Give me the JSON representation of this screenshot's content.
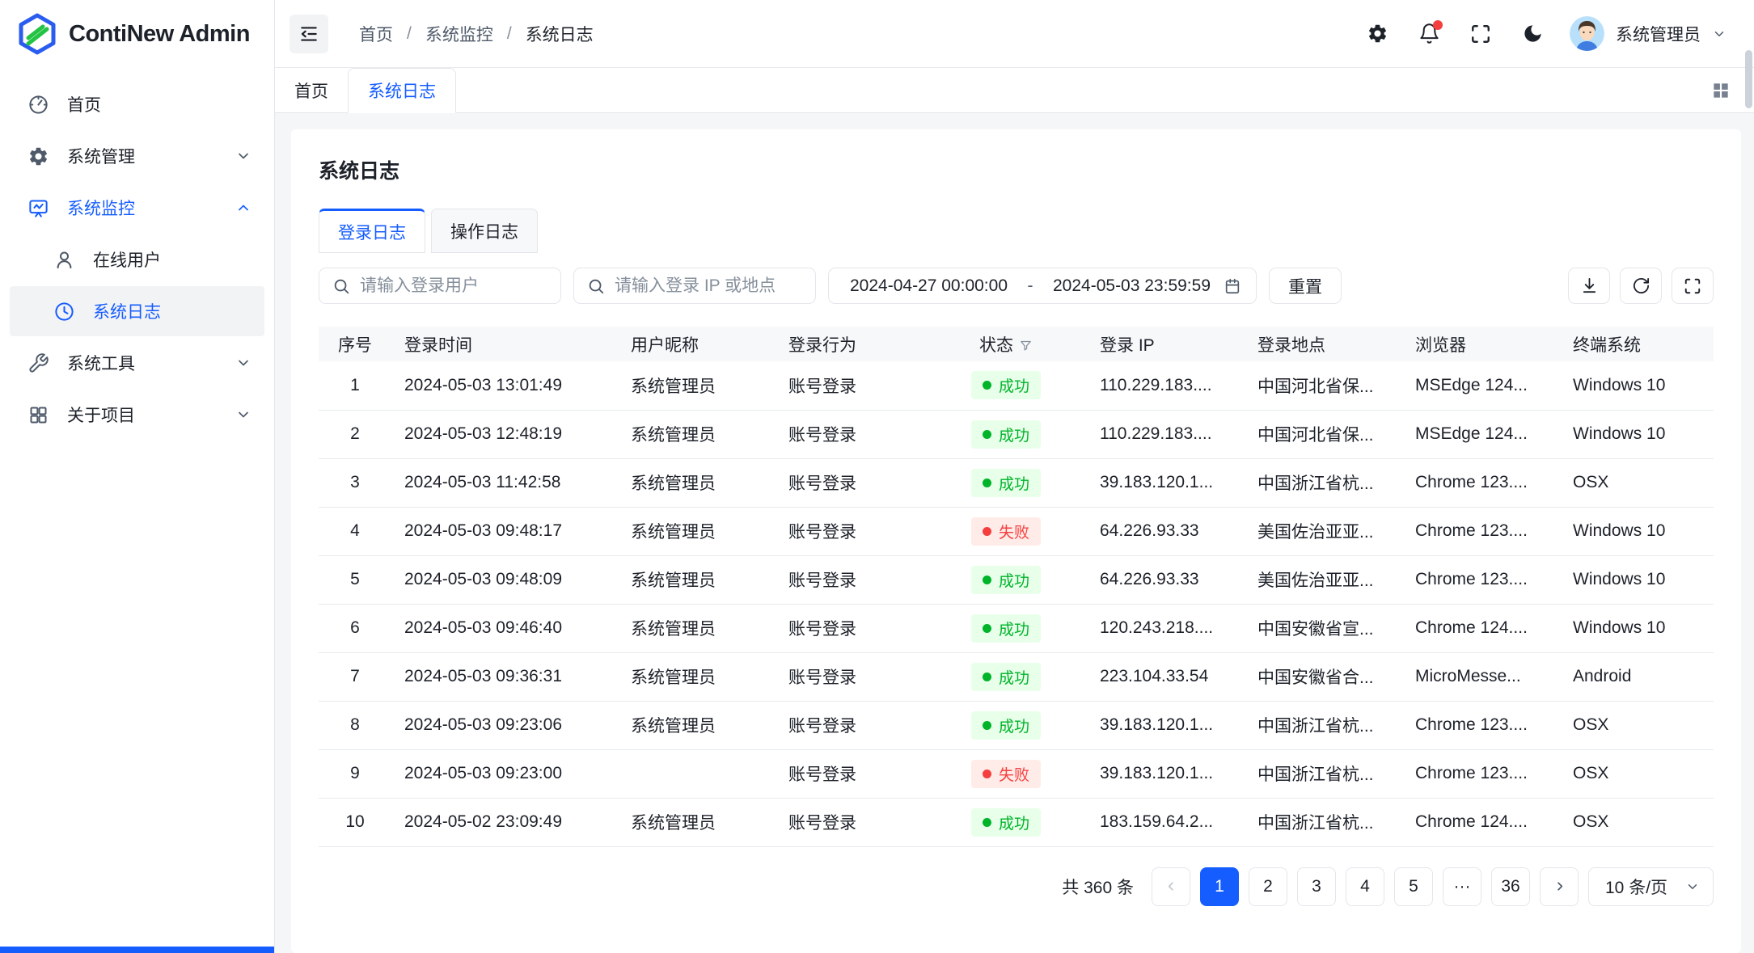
{
  "app": {
    "title": "ContiNew Admin"
  },
  "colors": {
    "primary": "#165dff",
    "success": "#00b42a",
    "danger": "#f53f3f"
  },
  "sidebar": {
    "items": [
      {
        "label": "首页",
        "icon": "dashboard-icon"
      },
      {
        "label": "系统管理",
        "icon": "gear-icon",
        "chevron": "down"
      },
      {
        "label": "系统监控",
        "icon": "monitor-icon",
        "chevron": "up",
        "active": true
      },
      {
        "label": "在线用户",
        "icon": "online-user-icon",
        "child": true
      },
      {
        "label": "系统日志",
        "icon": "clock-icon",
        "child": true,
        "selected": true
      },
      {
        "label": "系统工具",
        "icon": "wrench-icon",
        "chevron": "down"
      },
      {
        "label": "关于项目",
        "icon": "grid-icon",
        "chevron": "down"
      }
    ]
  },
  "header": {
    "breadcrumb": {
      "home": "首页",
      "sep1": "/",
      "monitor": "系统监控",
      "sep2": "/",
      "current": "系统日志"
    },
    "icons": [
      "settings-icon",
      "bell-icon",
      "fullscreen-icon",
      "moon-icon"
    ],
    "user_name": "系统管理员"
  },
  "tabbar": {
    "home_tab": "首页",
    "active_tab": "系统日志",
    "right_icon": "grid-filled-icon"
  },
  "page": {
    "title": "系统日志",
    "tabs": {
      "login": "登录日志",
      "operation": "操作日志"
    },
    "filters": {
      "user_placeholder": "请输入登录用户",
      "ip_placeholder": "请输入登录 IP 或地点",
      "date_start": "2024-04-27 00:00:00",
      "date_separator": "-",
      "date_end": "2024-05-03 23:59:59",
      "reset_label": "重置",
      "tool_icons": [
        "download-icon",
        "refresh-icon",
        "expand-icon"
      ]
    },
    "table": {
      "columns": [
        "序号",
        "登录时间",
        "用户昵称",
        "登录行为",
        "状态",
        "登录 IP",
        "登录地点",
        "浏览器",
        "终端系统"
      ],
      "rows": [
        {
          "no": "1",
          "time": "2024-05-03 13:01:49",
          "nick": "系统管理员",
          "action": "账号登录",
          "status": "成功",
          "ok": true,
          "ip": "110.229.183....",
          "loc": "中国河北省保...",
          "browser": "MSEdge 124...",
          "os": "Windows 10"
        },
        {
          "no": "2",
          "time": "2024-05-03 12:48:19",
          "nick": "系统管理员",
          "action": "账号登录",
          "status": "成功",
          "ok": true,
          "ip": "110.229.183....",
          "loc": "中国河北省保...",
          "browser": "MSEdge 124...",
          "os": "Windows 10"
        },
        {
          "no": "3",
          "time": "2024-05-03 11:42:58",
          "nick": "系统管理员",
          "action": "账号登录",
          "status": "成功",
          "ok": true,
          "ip": "39.183.120.1...",
          "loc": "中国浙江省杭...",
          "browser": "Chrome 123....",
          "os": "OSX"
        },
        {
          "no": "4",
          "time": "2024-05-03 09:48:17",
          "nick": "系统管理员",
          "action": "账号登录",
          "status": "失败",
          "ok": false,
          "ip": "64.226.93.33",
          "loc": "美国佐治亚亚...",
          "browser": "Chrome 123....",
          "os": "Windows 10"
        },
        {
          "no": "5",
          "time": "2024-05-03 09:48:09",
          "nick": "系统管理员",
          "action": "账号登录",
          "status": "成功",
          "ok": true,
          "ip": "64.226.93.33",
          "loc": "美国佐治亚亚...",
          "browser": "Chrome 123....",
          "os": "Windows 10"
        },
        {
          "no": "6",
          "time": "2024-05-03 09:46:40",
          "nick": "系统管理员",
          "action": "账号登录",
          "status": "成功",
          "ok": true,
          "ip": "120.243.218....",
          "loc": "中国安徽省宣...",
          "browser": "Chrome 124....",
          "os": "Windows 10"
        },
        {
          "no": "7",
          "time": "2024-05-03 09:36:31",
          "nick": "系统管理员",
          "action": "账号登录",
          "status": "成功",
          "ok": true,
          "ip": "223.104.33.54",
          "loc": "中国安徽省合...",
          "browser": "MicroMesse...",
          "os": "Android"
        },
        {
          "no": "8",
          "time": "2024-05-03 09:23:06",
          "nick": "系统管理员",
          "action": "账号登录",
          "status": "成功",
          "ok": true,
          "ip": "39.183.120.1...",
          "loc": "中国浙江省杭...",
          "browser": "Chrome 123....",
          "os": "OSX"
        },
        {
          "no": "9",
          "time": "2024-05-03 09:23:00",
          "nick": "",
          "action": "账号登录",
          "status": "失败",
          "ok": false,
          "ip": "39.183.120.1...",
          "loc": "中国浙江省杭...",
          "browser": "Chrome 123....",
          "os": "OSX"
        },
        {
          "no": "10",
          "time": "2024-05-02 23:09:49",
          "nick": "系统管理员",
          "action": "账号登录",
          "status": "成功",
          "ok": true,
          "ip": "183.159.64.2...",
          "loc": "中国浙江省杭...",
          "browser": "Chrome 124....",
          "os": "OSX"
        }
      ]
    },
    "pagination": {
      "total": "共 360 条",
      "pages": [
        "1",
        "2",
        "3",
        "4",
        "5",
        "···",
        "36"
      ],
      "active_page": "1",
      "page_size": "10 条/页"
    }
  }
}
